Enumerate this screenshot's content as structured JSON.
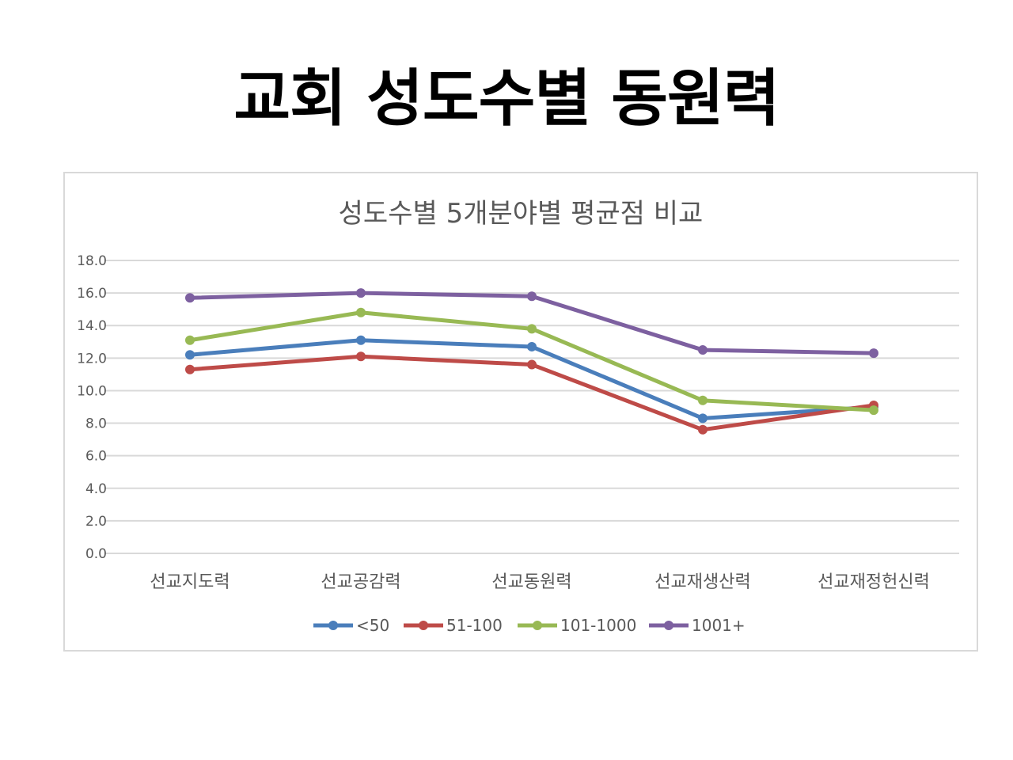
{
  "slide": {
    "title": "교회 성도수별 동원력"
  },
  "chart_data": {
    "type": "line",
    "title": "성도수별 5개분야별 평균점 비교",
    "xlabel": "",
    "ylabel": "",
    "categories": [
      "선교지도력",
      "선교공감력",
      "선교동원력",
      "선교재생산력",
      "선교재정헌신력"
    ],
    "ylim": [
      0,
      18
    ],
    "yticks": [
      "0.0",
      "2.0",
      "4.0",
      "6.0",
      "8.0",
      "10.0",
      "12.0",
      "14.0",
      "16.0",
      "18.0"
    ],
    "grid": true,
    "legend_position": "bottom",
    "series": [
      {
        "name": "<50",
        "color": "#4a7ebb",
        "values": [
          12.2,
          13.1,
          12.7,
          8.3,
          9.0
        ]
      },
      {
        "name": "51-100",
        "color": "#be4b48",
        "values": [
          11.3,
          12.1,
          11.6,
          7.6,
          9.1
        ]
      },
      {
        "name": "101-1000",
        "color": "#98b954",
        "values": [
          13.1,
          14.8,
          13.8,
          9.4,
          8.8
        ]
      },
      {
        "name": "1001+",
        "color": "#7d60a0",
        "values": [
          15.7,
          16.0,
          15.8,
          12.5,
          12.3
        ]
      }
    ]
  }
}
